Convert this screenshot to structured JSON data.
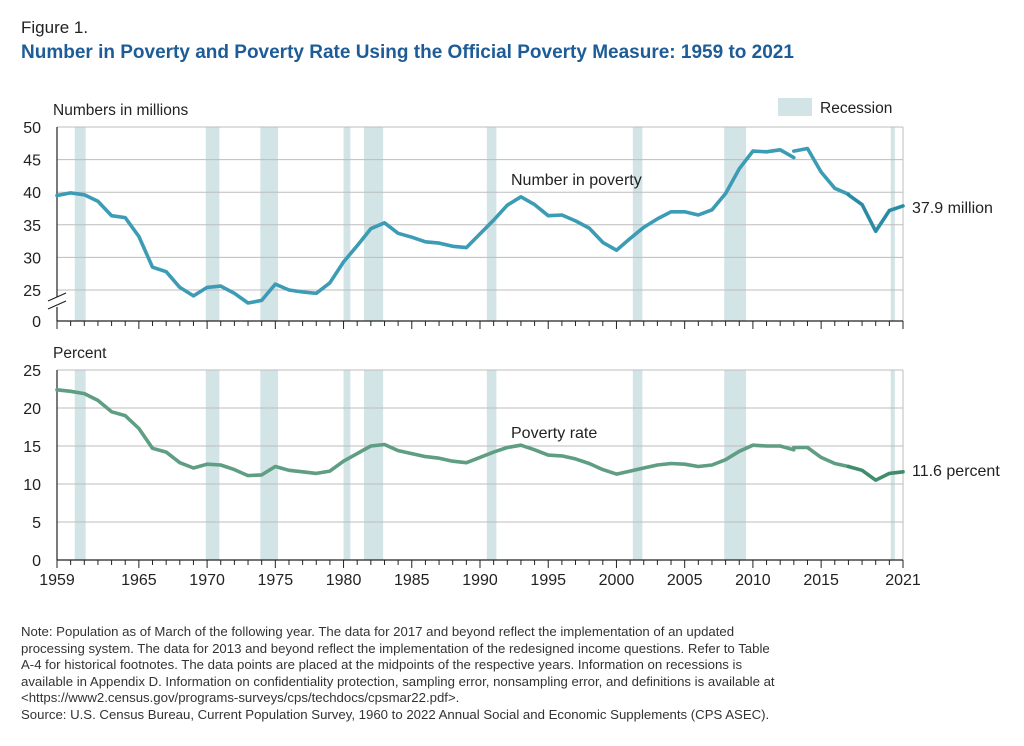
{
  "figure_label": "Figure 1.",
  "title": "Number in Poverty and Poverty Rate Using the Official Poverty Measure: 1959 to 2021",
  "legend": {
    "recession_label": "Recession",
    "color": "#d2e4e6"
  },
  "colors": {
    "number_line": "#3c9bb5",
    "number_line_dark": "#2a8ca4",
    "rate_line": "#5f9e83",
    "rate_line_dark": "#3f8d6c",
    "grid": "#bdbdbd",
    "axis": "#222222"
  },
  "x_axis": {
    "range": [
      1959,
      2021
    ],
    "tick_labels": [
      "1959",
      "1965",
      "1970",
      "1975",
      "1980",
      "1985",
      "1990",
      "1995",
      "2000",
      "2005",
      "2010",
      "2015",
      "2021"
    ],
    "tick_values": [
      1959,
      1965,
      1970,
      1975,
      1980,
      1985,
      1990,
      1995,
      2000,
      2005,
      2010,
      2015,
      2021
    ]
  },
  "recessions": [
    [
      1960.3,
      1961.1
    ],
    [
      1969.9,
      1970.9
    ],
    [
      1973.9,
      1975.2
    ],
    [
      1980.0,
      1980.5
    ],
    [
      1981.5,
      1982.9
    ],
    [
      1990.5,
      1991.2
    ],
    [
      2001.2,
      2001.9
    ],
    [
      2007.9,
      2009.5
    ],
    [
      2020.1,
      2020.4
    ]
  ],
  "chart_data": [
    {
      "type": "line",
      "ylabel": "Numbers in millions",
      "y_tick_labels": [
        "50",
        "45",
        "40",
        "35",
        "30",
        "25",
        "0"
      ],
      "ylim": [
        0,
        50
      ],
      "axis_break": true,
      "series_label": "Number in poverty",
      "end_label": "37.9 million",
      "segments": [
        {
          "x": [
            1959,
            1960,
            1961,
            1962,
            1963,
            1964,
            1965,
            1966,
            1967,
            1968,
            1969,
            1970,
            1971,
            1972,
            1973,
            1974,
            1975,
            1976,
            1977,
            1978,
            1979,
            1980,
            1981,
            1982,
            1983,
            1984,
            1985,
            1986,
            1987,
            1988,
            1989,
            1990,
            1991,
            1992,
            1993,
            1994,
            1995,
            1996,
            1997,
            1998,
            1999,
            2000,
            2001,
            2002,
            2003,
            2004,
            2005,
            2006,
            2007,
            2008,
            2009,
            2010,
            2011,
            2012,
            2013
          ],
          "y": [
            39.5,
            39.9,
            39.6,
            38.6,
            36.4,
            36.1,
            33.2,
            28.5,
            27.8,
            25.4,
            24.1,
            25.4,
            25.6,
            24.5,
            23.0,
            23.4,
            25.9,
            25.0,
            24.7,
            24.5,
            26.1,
            29.3,
            31.8,
            34.4,
            35.3,
            33.7,
            33.1,
            32.4,
            32.2,
            31.7,
            31.5,
            33.6,
            35.7,
            38.0,
            39.3,
            38.1,
            36.4,
            36.5,
            35.6,
            34.5,
            32.3,
            31.1,
            32.9,
            34.6,
            35.9,
            37.0,
            37.0,
            36.5,
            37.3,
            39.8,
            43.6,
            46.3,
            46.2,
            46.5,
            45.3
          ]
        },
        {
          "x": [
            2013,
            2014,
            2015,
            2016,
            2017
          ],
          "y": [
            46.3,
            46.7,
            43.1,
            40.6,
            39.7
          ]
        },
        {
          "x": [
            2017,
            2018,
            2019,
            2020,
            2021
          ],
          "y": [
            39.6,
            38.1,
            34.0,
            37.2,
            37.9
          ]
        }
      ]
    },
    {
      "type": "line",
      "ylabel": "Percent",
      "y_tick_labels": [
        "25",
        "20",
        "15",
        "10",
        "5",
        "0"
      ],
      "ylim": [
        0,
        25
      ],
      "series_label": "Poverty rate",
      "end_label": "11.6 percent",
      "segments": [
        {
          "x": [
            1959,
            1960,
            1961,
            1962,
            1963,
            1964,
            1965,
            1966,
            1967,
            1968,
            1969,
            1970,
            1971,
            1972,
            1973,
            1974,
            1975,
            1976,
            1977,
            1978,
            1979,
            1980,
            1981,
            1982,
            1983,
            1984,
            1985,
            1986,
            1987,
            1988,
            1989,
            1990,
            1991,
            1992,
            1993,
            1994,
            1995,
            1996,
            1997,
            1998,
            1999,
            2000,
            2001,
            2002,
            2003,
            2004,
            2005,
            2006,
            2007,
            2008,
            2009,
            2010,
            2011,
            2012,
            2013
          ],
          "y": [
            22.4,
            22.2,
            21.9,
            21.0,
            19.5,
            19.0,
            17.3,
            14.7,
            14.2,
            12.8,
            12.1,
            12.6,
            12.5,
            11.9,
            11.1,
            11.2,
            12.3,
            11.8,
            11.6,
            11.4,
            11.7,
            13.0,
            14.0,
            15.0,
            15.2,
            14.4,
            14.0,
            13.6,
            13.4,
            13.0,
            12.8,
            13.5,
            14.2,
            14.8,
            15.1,
            14.5,
            13.8,
            13.7,
            13.3,
            12.7,
            11.9,
            11.3,
            11.7,
            12.1,
            12.5,
            12.7,
            12.6,
            12.3,
            12.5,
            13.2,
            14.3,
            15.1,
            15.0,
            15.0,
            14.5
          ]
        },
        {
          "x": [
            2013,
            2014,
            2015,
            2016,
            2017
          ],
          "y": [
            14.8,
            14.8,
            13.5,
            12.7,
            12.3
          ]
        },
        {
          "x": [
            2017,
            2018,
            2019,
            2020,
            2021
          ],
          "y": [
            12.3,
            11.8,
            10.5,
            11.4,
            11.6
          ]
        }
      ]
    }
  ],
  "notes": [
    "Note: Population as of March of the following year. The data for 2017 and beyond reflect the implementation of an updated",
    "processing system. The data for 2013 and beyond reflect the implementation of the redesigned income questions. Refer to Table",
    "A-4 for historical footnotes. The data points are placed at the midpoints of the respective years. Information on recessions is",
    "available in Appendix D. Information on confidentiality protection, sampling error, nonsampling error, and definitions is available at",
    "<https://www2.census.gov/programs-surveys/cps/techdocs/cpsmar22.pdf>.",
    "Source: U.S. Census Bureau, Current Population Survey, 1960 to 2022 Annual Social and Economic Supplements (CPS ASEC)."
  ]
}
